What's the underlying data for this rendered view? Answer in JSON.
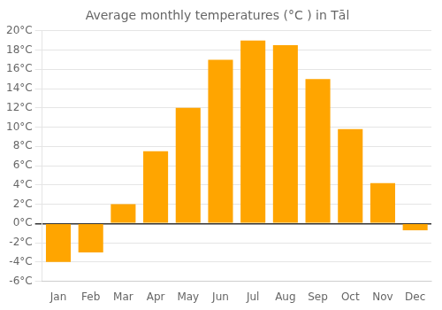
{
  "chart_data": {
    "type": "bar",
    "title": "Average monthly temperatures (°C ) in Tāl",
    "categories": [
      "Jan",
      "Feb",
      "Mar",
      "Apr",
      "May",
      "Jun",
      "Jul",
      "Aug",
      "Sep",
      "Oct",
      "Nov",
      "Dec"
    ],
    "values": [
      -4.0,
      -3.0,
      2.0,
      7.5,
      12.0,
      17.0,
      19.0,
      18.5,
      15.0,
      9.8,
      4.2,
      -0.7
    ],
    "color": "#FFA500",
    "ylim": [
      -6,
      20
    ],
    "yticks": [
      {
        "value": -6,
        "label": "-6°C"
      },
      {
        "value": -4,
        "label": "-4°C"
      },
      {
        "value": -2,
        "label": "-2°C"
      },
      {
        "value": 0,
        "label": "0°C"
      },
      {
        "value": 2,
        "label": "2°C"
      },
      {
        "value": 4,
        "label": "4°C"
      },
      {
        "value": 6,
        "label": "6°C"
      },
      {
        "value": 8,
        "label": "8°C"
      },
      {
        "value": 10,
        "label": "10°C"
      },
      {
        "value": 12,
        "label": "12°C"
      },
      {
        "value": 14,
        "label": "14°C"
      },
      {
        "value": 16,
        "label": "16°C"
      },
      {
        "value": 18,
        "label": "18°C"
      },
      {
        "value": 20,
        "label": "20°C"
      }
    ],
    "grid": true
  }
}
